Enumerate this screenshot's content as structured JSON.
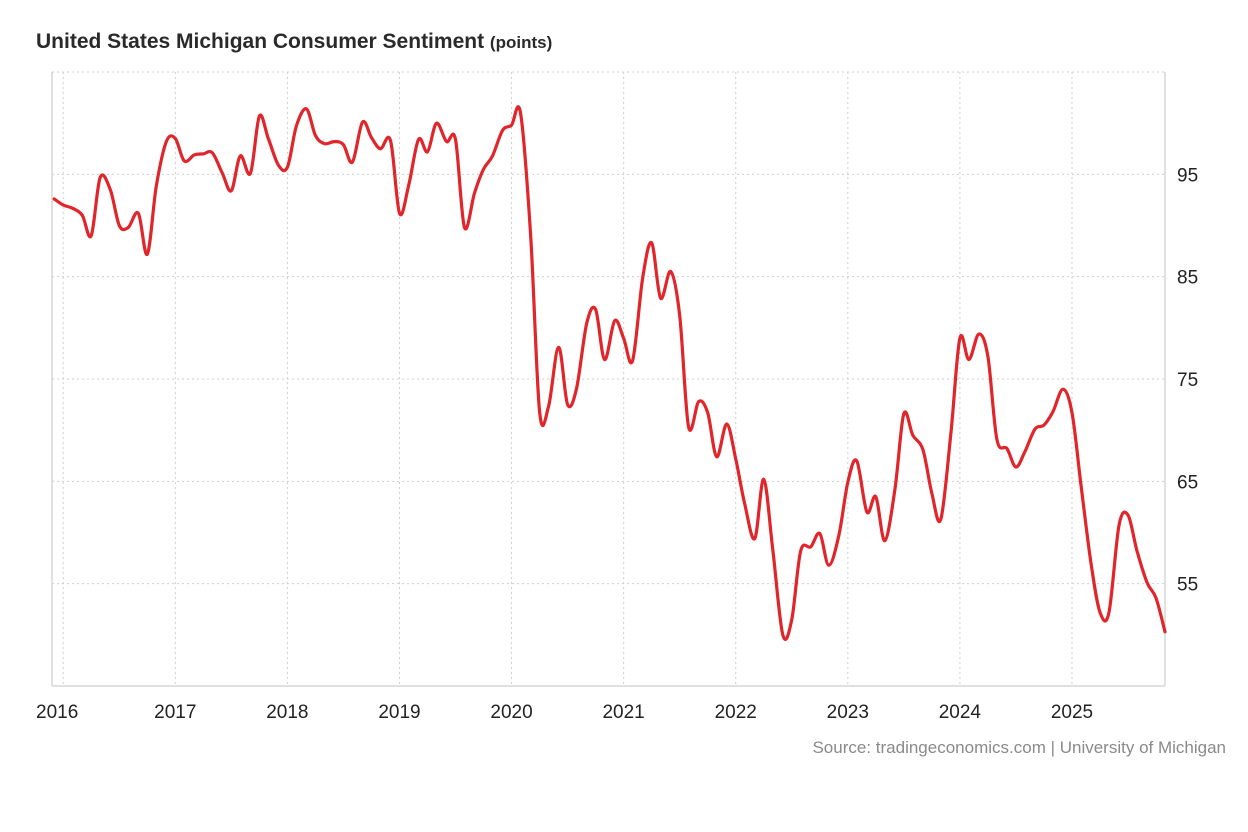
{
  "title": "United States Michigan Consumer Sentiment",
  "units": "(points)",
  "source": "Source: tradingeconomics.com | University of Michigan",
  "chart_data": {
    "type": "line",
    "title": "United States Michigan Consumer Sentiment",
    "units": "(points)",
    "xlabel": "",
    "ylabel": "",
    "xlim": [
      2015.9,
      2025.83
    ],
    "ylim": [
      45,
      105
    ],
    "x_ticks": [
      2016,
      2017,
      2018,
      2019,
      2020,
      2021,
      2022,
      2023,
      2024,
      2025
    ],
    "y_ticks": [
      55,
      65,
      75,
      85,
      95
    ],
    "grid": true,
    "legend": "none",
    "line_color": "#e0252b",
    "series": [
      {
        "x": [
          2015.92,
          2016.0,
          2016.08,
          2016.17,
          2016.25,
          2016.33,
          2016.42,
          2016.5,
          2016.58,
          2016.67,
          2016.75,
          2016.83,
          2016.92,
          2017.0,
          2017.08,
          2017.17,
          2017.25,
          2017.33,
          2017.42,
          2017.5,
          2017.58,
          2017.67,
          2017.75,
          2017.83,
          2017.92,
          2018.0,
          2018.08,
          2018.17,
          2018.25,
          2018.33,
          2018.42,
          2018.5,
          2018.58,
          2018.67,
          2018.75,
          2018.83,
          2018.92,
          2019.0,
          2019.08,
          2019.17,
          2019.25,
          2019.33,
          2019.42,
          2019.5,
          2019.58,
          2019.67,
          2019.75,
          2019.83,
          2019.92,
          2020.0,
          2020.08,
          2020.17,
          2020.25,
          2020.33,
          2020.42,
          2020.5,
          2020.58,
          2020.67,
          2020.75,
          2020.83,
          2020.92,
          2021.0,
          2021.08,
          2021.17,
          2021.25,
          2021.33,
          2021.42,
          2021.5,
          2021.58,
          2021.67,
          2021.75,
          2021.83,
          2021.92,
          2022.0,
          2022.08,
          2022.17,
          2022.25,
          2022.33,
          2022.42,
          2022.5,
          2022.58,
          2022.67,
          2022.75,
          2022.83,
          2022.92,
          2023.0,
          2023.08,
          2023.17,
          2023.25,
          2023.33,
          2023.42,
          2023.5,
          2023.58,
          2023.67,
          2023.75,
          2023.83,
          2023.92,
          2024.0,
          2024.08,
          2024.17,
          2024.25,
          2024.33,
          2024.42,
          2024.5,
          2024.58,
          2024.67,
          2024.75,
          2024.83,
          2024.92,
          2025.0,
          2025.08,
          2025.17,
          2025.25,
          2025.33,
          2025.42,
          2025.5,
          2025.58,
          2025.67,
          2025.75,
          2025.83
        ],
        "values": [
          92.6,
          92.0,
          91.7,
          91.0,
          89.0,
          94.7,
          93.5,
          90.0,
          89.8,
          91.2,
          87.2,
          93.8,
          98.2,
          98.5,
          96.3,
          96.9,
          97.0,
          97.1,
          95.1,
          93.4,
          96.8,
          95.1,
          100.7,
          98.5,
          95.9,
          95.7,
          99.7,
          101.4,
          98.8,
          98.0,
          98.2,
          97.9,
          96.2,
          100.1,
          98.6,
          97.5,
          98.3,
          91.2,
          93.8,
          98.4,
          97.2,
          100.0,
          98.2,
          98.4,
          89.8,
          93.2,
          95.5,
          96.8,
          99.3,
          99.8,
          101.0,
          89.1,
          71.8,
          72.3,
          78.1,
          72.5,
          74.1,
          80.4,
          81.8,
          76.9,
          80.7,
          79.0,
          76.8,
          84.9,
          88.3,
          82.9,
          85.5,
          81.2,
          70.3,
          72.8,
          71.7,
          67.4,
          70.6,
          67.2,
          62.8,
          59.4,
          65.2,
          58.4,
          50.0,
          51.5,
          58.2,
          58.6,
          59.9,
          56.8,
          59.7,
          64.9,
          67.0,
          62.0,
          63.5,
          59.2,
          64.2,
          71.6,
          69.5,
          68.1,
          63.8,
          61.3,
          69.7,
          79.0,
          76.9,
          79.4,
          77.2,
          69.1,
          68.2,
          66.4,
          67.9,
          70.1,
          70.5,
          71.8,
          74.0,
          71.7,
          64.7,
          57.0,
          52.2,
          52.2,
          60.7,
          61.7,
          58.2,
          55.1,
          53.6,
          50.3
        ]
      }
    ]
  }
}
